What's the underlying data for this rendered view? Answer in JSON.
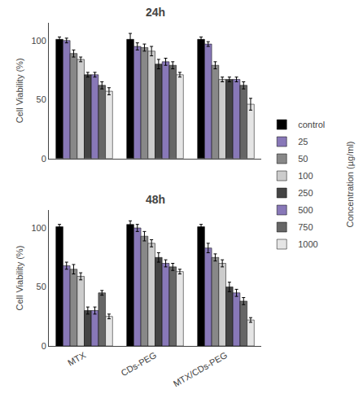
{
  "chart_data": [
    {
      "type": "bar",
      "title": "24h",
      "ylabel": "Cell Viability (%)",
      "categories": [
        "MTX",
        "CDs-PEG",
        "MTX/CDs-PEG"
      ],
      "series": [
        {
          "name": "control",
          "color": "#000000",
          "values": [
            101,
            101,
            101
          ],
          "errors": [
            2,
            5,
            2
          ]
        },
        {
          "name": "25",
          "color": "#8878B8",
          "values": [
            100,
            95,
            97
          ],
          "errors": [
            2,
            3,
            2
          ]
        },
        {
          "name": "50",
          "color": "#888888",
          "values": [
            89,
            94,
            79
          ],
          "errors": [
            3,
            3,
            3
          ]
        },
        {
          "name": "100",
          "color": "#CCCCCC",
          "values": [
            84,
            91,
            67
          ],
          "errors": [
            2,
            4,
            2
          ]
        },
        {
          "name": "250",
          "color": "#444444",
          "values": [
            71,
            80,
            67
          ],
          "errors": [
            2,
            4,
            2
          ]
        },
        {
          "name": "500",
          "color": "#8878B8",
          "values": [
            71,
            82,
            67
          ],
          "errors": [
            2,
            3,
            2
          ]
        },
        {
          "name": "750",
          "color": "#666666",
          "values": [
            62,
            79,
            62
          ],
          "errors": [
            3,
            3,
            3
          ]
        },
        {
          "name": "1000",
          "color": "#E5E5E5",
          "values": [
            57,
            71,
            46
          ],
          "errors": [
            3,
            2,
            5
          ]
        }
      ],
      "ylim": [
        0,
        115
      ],
      "yticks": [
        0,
        50,
        100
      ],
      "grid": false,
      "tick_labels": "y",
      "legend": "right",
      "annotations": [
        "Concentration (µg/ml)"
      ]
    },
    {
      "type": "bar",
      "title": "48h",
      "ylabel": "Cell Viability (%)",
      "categories": [
        "MTX",
        "CDs-PEG",
        "MTX/CDs-PEG"
      ],
      "series": [
        {
          "name": "control",
          "color": "#000000",
          "values": [
            101,
            103,
            101
          ],
          "errors": [
            2,
            3,
            2
          ]
        },
        {
          "name": "25",
          "color": "#8878B8",
          "values": [
            68,
            100,
            83
          ],
          "errors": [
            3,
            3,
            4
          ]
        },
        {
          "name": "50",
          "color": "#888888",
          "values": [
            65,
            93,
            75
          ],
          "errors": [
            4,
            4,
            3
          ]
        },
        {
          "name": "100",
          "color": "#CCCCCC",
          "values": [
            59,
            87,
            70
          ],
          "errors": [
            3,
            3,
            3
          ]
        },
        {
          "name": "250",
          "color": "#444444",
          "values": [
            30,
            75,
            50
          ],
          "errors": [
            3,
            4,
            4
          ]
        },
        {
          "name": "500",
          "color": "#8878B8",
          "values": [
            30,
            70,
            45
          ],
          "errors": [
            3,
            3,
            3
          ]
        },
        {
          "name": "750",
          "color": "#666666",
          "values": [
            45,
            67,
            38
          ],
          "errors": [
            2,
            3,
            3
          ]
        },
        {
          "name": "1000",
          "color": "#E5E5E5",
          "values": [
            25,
            63,
            22
          ],
          "errors": [
            2,
            2,
            2
          ]
        }
      ],
      "ylim": [
        0,
        115
      ],
      "yticks": [
        0,
        50,
        100
      ],
      "grid": false
    }
  ]
}
